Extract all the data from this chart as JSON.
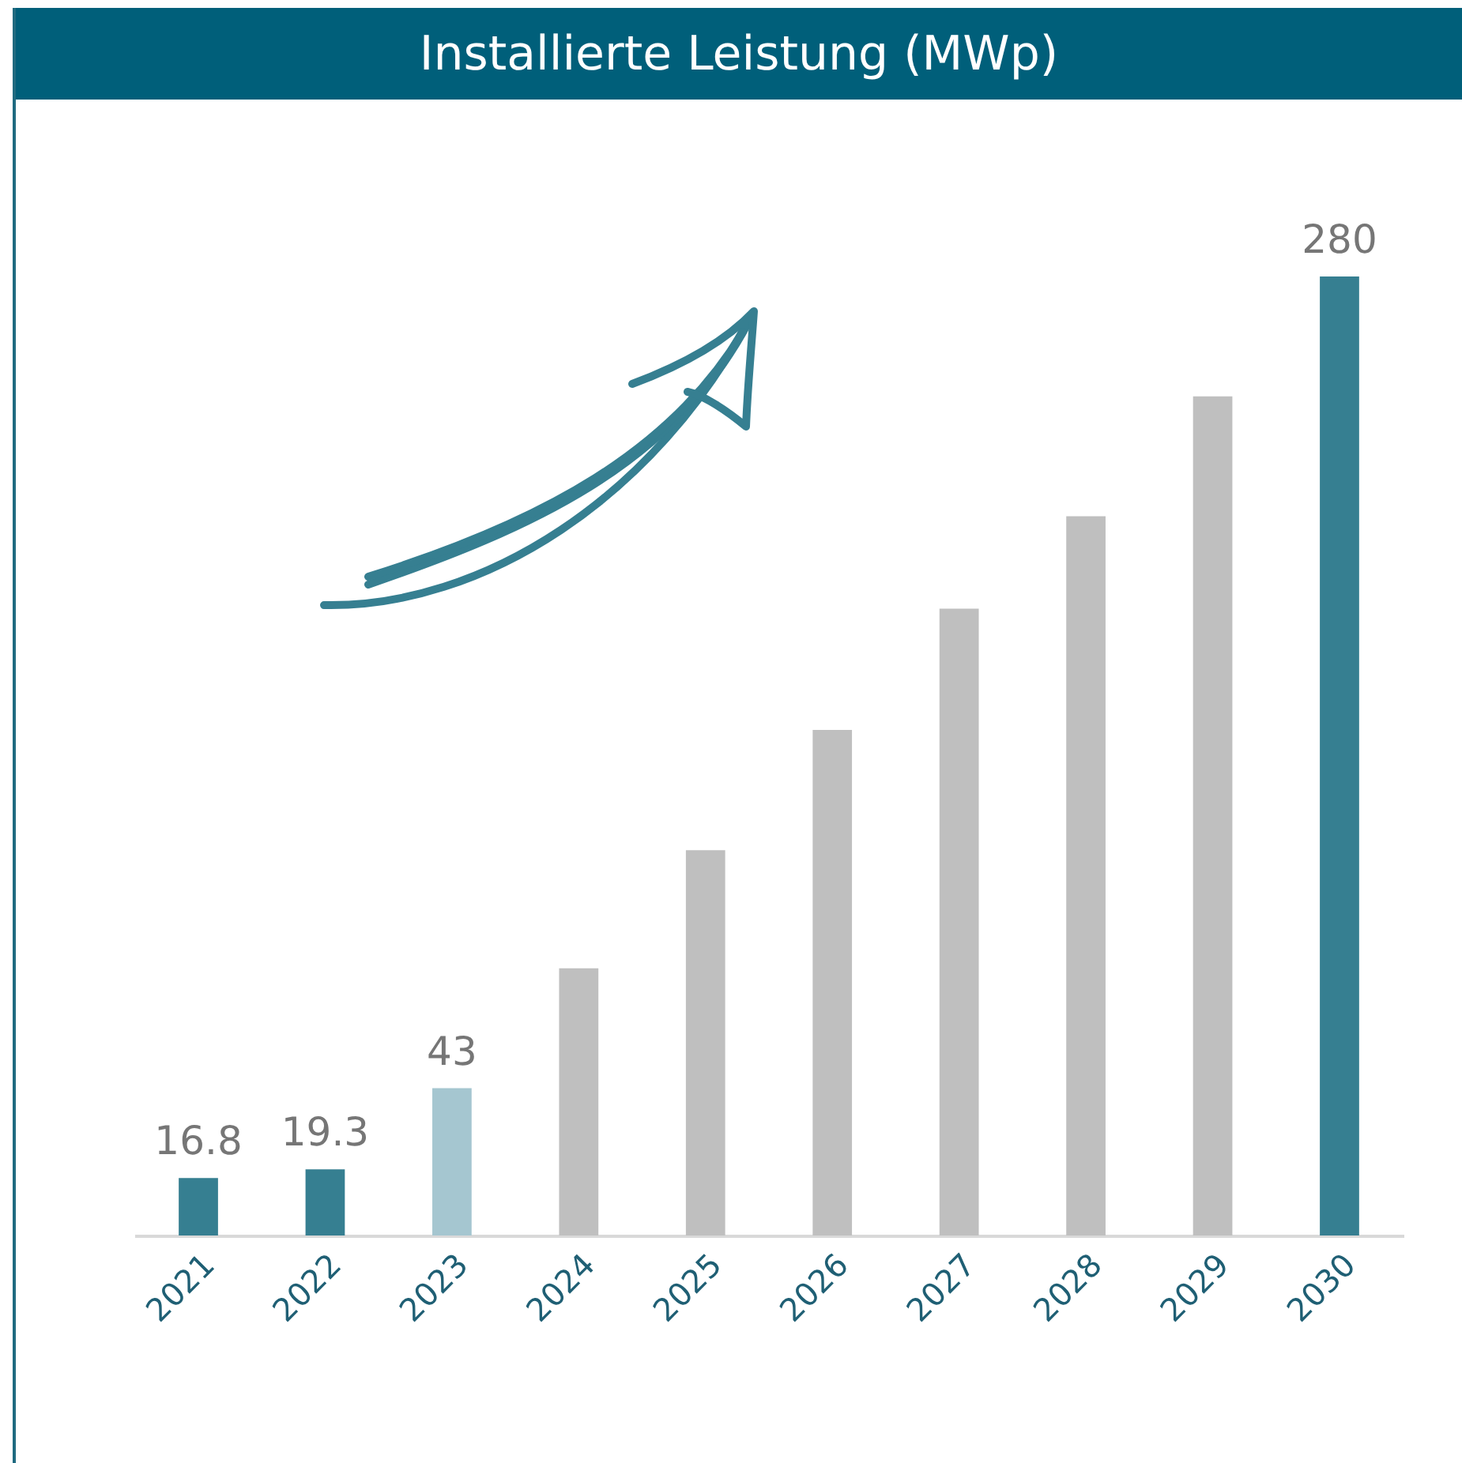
{
  "chart_data": {
    "type": "bar",
    "title": "Installierte Leistung (MWp)",
    "categories": [
      "2021",
      "2022",
      "2023",
      "2024",
      "2025",
      "2026",
      "2027",
      "2028",
      "2029",
      "2030"
    ],
    "values": [
      16.8,
      19.3,
      43,
      78,
      112.5,
      147.6,
      183,
      210,
      245,
      280
    ],
    "colors": [
      "#367f91",
      "#367f91",
      "#a5c6d0",
      "#bfbfbf",
      "#bfbfbf",
      "#bfbfbf",
      "#bfbfbf",
      "#bfbfbf",
      "#bfbfbf",
      "#367f91"
    ],
    "value_labels": [
      "16.8",
      "19.3",
      "43",
      null,
      null,
      null,
      null,
      null,
      null,
      "280"
    ]
  }
}
